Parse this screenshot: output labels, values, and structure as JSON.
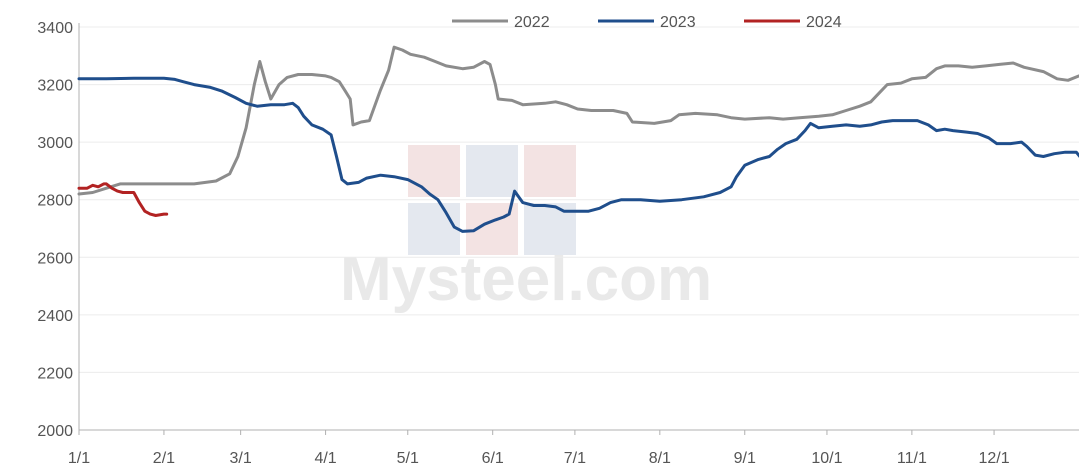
{
  "chart_data": {
    "type": "line",
    "title": "",
    "xlabel": "",
    "ylabel": "",
    "ylim": [
      2000,
      3400
    ],
    "yticks": [
      2000,
      2200,
      2400,
      2600,
      2800,
      3000,
      3200,
      3400
    ],
    "xticks": [
      {
        "label": "1/1",
        "day": 0
      },
      {
        "label": "2/1",
        "day": 31
      },
      {
        "label": "3/1",
        "day": 59
      },
      {
        "label": "4/1",
        "day": 90
      },
      {
        "label": "5/1",
        "day": 120
      },
      {
        "label": "6/1",
        "day": 151
      },
      {
        "label": "7/1",
        "day": 181
      },
      {
        "label": "8/1",
        "day": 212
      },
      {
        "label": "9/1",
        "day": 243
      },
      {
        "label": "10/1",
        "day": 273
      },
      {
        "label": "11/1",
        "day": 304
      },
      {
        "label": "12/1",
        "day": 334
      }
    ],
    "xmax": 365,
    "legend_position": "top",
    "watermark": "Mysteel.com",
    "series": [
      {
        "name": "2022",
        "color": "#8c8c8c",
        "points": [
          [
            0,
            2820
          ],
          [
            5,
            2825
          ],
          [
            10,
            2840
          ],
          [
            15,
            2855
          ],
          [
            20,
            2855
          ],
          [
            31,
            2855
          ],
          [
            42,
            2855
          ],
          [
            50,
            2865
          ],
          [
            55,
            2890
          ],
          [
            58,
            2950
          ],
          [
            61,
            3050
          ],
          [
            64,
            3200
          ],
          [
            66,
            3280
          ],
          [
            68,
            3210
          ],
          [
            70,
            3150
          ],
          [
            73,
            3200
          ],
          [
            76,
            3225
          ],
          [
            80,
            3235
          ],
          [
            85,
            3235
          ],
          [
            90,
            3230
          ],
          [
            92,
            3225
          ],
          [
            95,
            3210
          ],
          [
            97,
            3180
          ],
          [
            99,
            3150
          ],
          [
            100,
            3060
          ],
          [
            103,
            3070
          ],
          [
            106,
            3075
          ],
          [
            110,
            3180
          ],
          [
            113,
            3250
          ],
          [
            115,
            3330
          ],
          [
            118,
            3320
          ],
          [
            121,
            3305
          ],
          [
            126,
            3295
          ],
          [
            130,
            3280
          ],
          [
            134,
            3265
          ],
          [
            140,
            3255
          ],
          [
            144,
            3260
          ],
          [
            148,
            3280
          ],
          [
            150,
            3270
          ],
          [
            152,
            3200
          ],
          [
            153,
            3150
          ],
          [
            158,
            3145
          ],
          [
            162,
            3130
          ],
          [
            170,
            3135
          ],
          [
            174,
            3140
          ],
          [
            178,
            3130
          ],
          [
            182,
            3115
          ],
          [
            187,
            3110
          ],
          [
            195,
            3110
          ],
          [
            200,
            3100
          ],
          [
            202,
            3070
          ],
          [
            210,
            3065
          ],
          [
            216,
            3075
          ],
          [
            219,
            3095
          ],
          [
            225,
            3100
          ],
          [
            233,
            3095
          ],
          [
            238,
            3085
          ],
          [
            243,
            3080
          ],
          [
            252,
            3085
          ],
          [
            257,
            3080
          ],
          [
            263,
            3085
          ],
          [
            270,
            3090
          ],
          [
            275,
            3095
          ],
          [
            280,
            3110
          ],
          [
            285,
            3125
          ],
          [
            289,
            3140
          ],
          [
            292,
            3170
          ],
          [
            295,
            3200
          ],
          [
            300,
            3205
          ],
          [
            304,
            3220
          ],
          [
            309,
            3225
          ],
          [
            313,
            3255
          ],
          [
            316,
            3265
          ],
          [
            321,
            3265
          ],
          [
            326,
            3260
          ],
          [
            331,
            3265
          ],
          [
            336,
            3270
          ],
          [
            341,
            3275
          ],
          [
            345,
            3260
          ],
          [
            352,
            3245
          ],
          [
            357,
            3220
          ],
          [
            361,
            3215
          ],
          [
            365,
            3230
          ]
        ]
      },
      {
        "name": "2023",
        "color": "#1f4e8c",
        "points": [
          [
            0,
            3220
          ],
          [
            10,
            3220
          ],
          [
            20,
            3222
          ],
          [
            31,
            3222
          ],
          [
            35,
            3218
          ],
          [
            38,
            3210
          ],
          [
            42,
            3200
          ],
          [
            48,
            3190
          ],
          [
            52,
            3178
          ],
          [
            57,
            3155
          ],
          [
            61,
            3135
          ],
          [
            65,
            3125
          ],
          [
            70,
            3130
          ],
          [
            75,
            3130
          ],
          [
            78,
            3135
          ],
          [
            80,
            3120
          ],
          [
            82,
            3090
          ],
          [
            85,
            3060
          ],
          [
            89,
            3045
          ],
          [
            92,
            3025
          ],
          [
            94,
            2950
          ],
          [
            96,
            2870
          ],
          [
            98,
            2855
          ],
          [
            102,
            2860
          ],
          [
            105,
            2875
          ],
          [
            110,
            2885
          ],
          [
            115,
            2880
          ],
          [
            120,
            2870
          ],
          [
            125,
            2845
          ],
          [
            128,
            2820
          ],
          [
            131,
            2800
          ],
          [
            134,
            2755
          ],
          [
            137,
            2705
          ],
          [
            140,
            2690
          ],
          [
            144,
            2692
          ],
          [
            148,
            2715
          ],
          [
            152,
            2730
          ],
          [
            155,
            2740
          ],
          [
            157,
            2750
          ],
          [
            159,
            2830
          ],
          [
            162,
            2790
          ],
          [
            166,
            2780
          ],
          [
            170,
            2780
          ],
          [
            174,
            2775
          ],
          [
            177,
            2760
          ],
          [
            181,
            2760
          ],
          [
            186,
            2760
          ],
          [
            190,
            2770
          ],
          [
            194,
            2790
          ],
          [
            198,
            2800
          ],
          [
            205,
            2800
          ],
          [
            212,
            2795
          ],
          [
            220,
            2800
          ],
          [
            228,
            2810
          ],
          [
            234,
            2825
          ],
          [
            238,
            2845
          ],
          [
            240,
            2880
          ],
          [
            243,
            2920
          ],
          [
            248,
            2940
          ],
          [
            252,
            2950
          ],
          [
            255,
            2975
          ],
          [
            258,
            2995
          ],
          [
            262,
            3010
          ],
          [
            265,
            3040
          ],
          [
            267,
            3065
          ],
          [
            270,
            3050
          ],
          [
            275,
            3055
          ],
          [
            280,
            3060
          ],
          [
            285,
            3055
          ],
          [
            289,
            3060
          ],
          [
            293,
            3070
          ],
          [
            297,
            3075
          ],
          [
            302,
            3075
          ],
          [
            306,
            3075
          ],
          [
            310,
            3060
          ],
          [
            313,
            3040
          ],
          [
            316,
            3045
          ],
          [
            319,
            3040
          ],
          [
            324,
            3035
          ],
          [
            328,
            3030
          ],
          [
            332,
            3015
          ],
          [
            335,
            2995
          ],
          [
            340,
            2995
          ],
          [
            344,
            3000
          ],
          [
            346,
            2985
          ],
          [
            349,
            2955
          ],
          [
            352,
            2950
          ],
          [
            356,
            2960
          ],
          [
            360,
            2965
          ],
          [
            364,
            2965
          ],
          [
            367,
            2930
          ],
          [
            370,
            2900
          ],
          [
            374,
            2895
          ],
          [
            378,
            2870
          ]
        ]
      },
      {
        "name": "2024",
        "color": "#b22222",
        "points": [
          [
            0,
            2840
          ],
          [
            3,
            2840
          ],
          [
            5,
            2850
          ],
          [
            7,
            2845
          ],
          [
            9,
            2855
          ],
          [
            10,
            2855
          ],
          [
            12,
            2840
          ],
          [
            14,
            2830
          ],
          [
            16,
            2825
          ],
          [
            18,
            2825
          ],
          [
            20,
            2825
          ],
          [
            22,
            2790
          ],
          [
            24,
            2760
          ],
          [
            26,
            2750
          ],
          [
            28,
            2745
          ],
          [
            31,
            2750
          ],
          [
            32,
            2750
          ]
        ]
      }
    ]
  }
}
